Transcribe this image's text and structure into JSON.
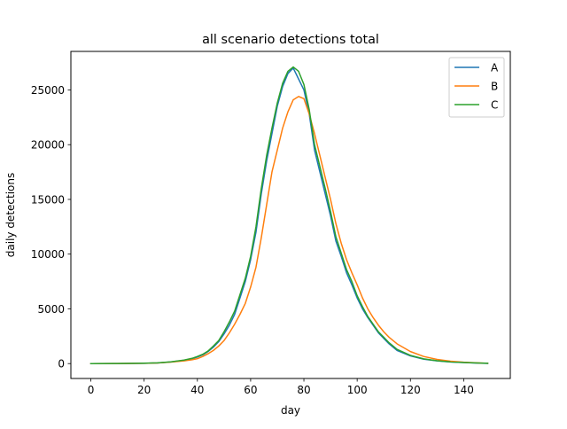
{
  "chart_data": {
    "type": "line",
    "title": "all scenario detections total",
    "xlabel": "day",
    "ylabel": "daily detections",
    "xlim": [
      -7.5,
      157.5
    ],
    "ylim": [
      -1360,
      28520
    ],
    "xticks": [
      0,
      20,
      40,
      60,
      80,
      100,
      120,
      140
    ],
    "yticks": [
      0,
      5000,
      10000,
      15000,
      20000,
      25000
    ],
    "grid": false,
    "legend_position": "top-right",
    "series": [
      {
        "name": "A",
        "color": "#1f77b4",
        "x": [
          0,
          10,
          20,
          25,
          30,
          35,
          38,
          40,
          42,
          44,
          46,
          48,
          50,
          52,
          54,
          56,
          58,
          60,
          62,
          64,
          66,
          68,
          70,
          72,
          74,
          76,
          78,
          80,
          82,
          84,
          86,
          88,
          90,
          92,
          94,
          96,
          98,
          100,
          102,
          104,
          106,
          108,
          110,
          112,
          115,
          120,
          125,
          130,
          135,
          140,
          145,
          149
        ],
        "y": [
          0,
          10,
          30,
          60,
          150,
          300,
          450,
          600,
          800,
          1100,
          1500,
          2000,
          2700,
          3500,
          4500,
          6000,
          7500,
          9500,
          12000,
          15500,
          18500,
          21000,
          23500,
          25300,
          26500,
          27000,
          26000,
          25000,
          22800,
          19500,
          17500,
          15500,
          13500,
          11200,
          9800,
          8300,
          7200,
          6000,
          5000,
          4200,
          3500,
          2800,
          2300,
          1800,
          1200,
          700,
          400,
          250,
          150,
          100,
          50,
          20
        ]
      },
      {
        "name": "B",
        "color": "#ff7f0e",
        "x": [
          0,
          10,
          20,
          25,
          30,
          35,
          38,
          40,
          42,
          44,
          46,
          48,
          50,
          52,
          54,
          56,
          58,
          60,
          62,
          64,
          66,
          68,
          70,
          72,
          74,
          76,
          78,
          80,
          82,
          84,
          86,
          88,
          90,
          92,
          94,
          96,
          98,
          100,
          102,
          104,
          106,
          108,
          110,
          112,
          115,
          120,
          125,
          130,
          135,
          140,
          145,
          149
        ],
        "y": [
          0,
          10,
          30,
          60,
          140,
          250,
          350,
          450,
          650,
          900,
          1200,
          1600,
          2100,
          2800,
          3600,
          4500,
          5500,
          7000,
          8800,
          11500,
          14500,
          17500,
          19500,
          21500,
          23000,
          24100,
          24400,
          24200,
          22800,
          21000,
          19000,
          17000,
          15000,
          12800,
          11000,
          9500,
          8300,
          7200,
          6000,
          5000,
          4200,
          3500,
          2900,
          2400,
          1800,
          1100,
          650,
          380,
          220,
          130,
          70,
          30
        ]
      },
      {
        "name": "C",
        "color": "#2ca02c",
        "x": [
          0,
          10,
          20,
          25,
          30,
          35,
          38,
          40,
          42,
          44,
          46,
          48,
          50,
          52,
          54,
          56,
          58,
          60,
          62,
          64,
          66,
          68,
          70,
          72,
          74,
          76,
          78,
          80,
          82,
          84,
          86,
          88,
          90,
          92,
          94,
          96,
          98,
          100,
          102,
          104,
          106,
          108,
          110,
          112,
          115,
          120,
          125,
          130,
          135,
          140,
          145,
          149
        ],
        "y": [
          0,
          10,
          35,
          70,
          160,
          320,
          480,
          650,
          850,
          1150,
          1600,
          2100,
          2900,
          3800,
          4800,
          6300,
          7800,
          9800,
          12500,
          16000,
          19000,
          21500,
          23800,
          25600,
          26700,
          27100,
          26700,
          25500,
          23200,
          20000,
          18000,
          16000,
          13900,
          11600,
          10100,
          8600,
          7500,
          6200,
          5200,
          4300,
          3600,
          2900,
          2400,
          1900,
          1300,
          750,
          430,
          260,
          160,
          100,
          55,
          25
        ]
      }
    ]
  }
}
